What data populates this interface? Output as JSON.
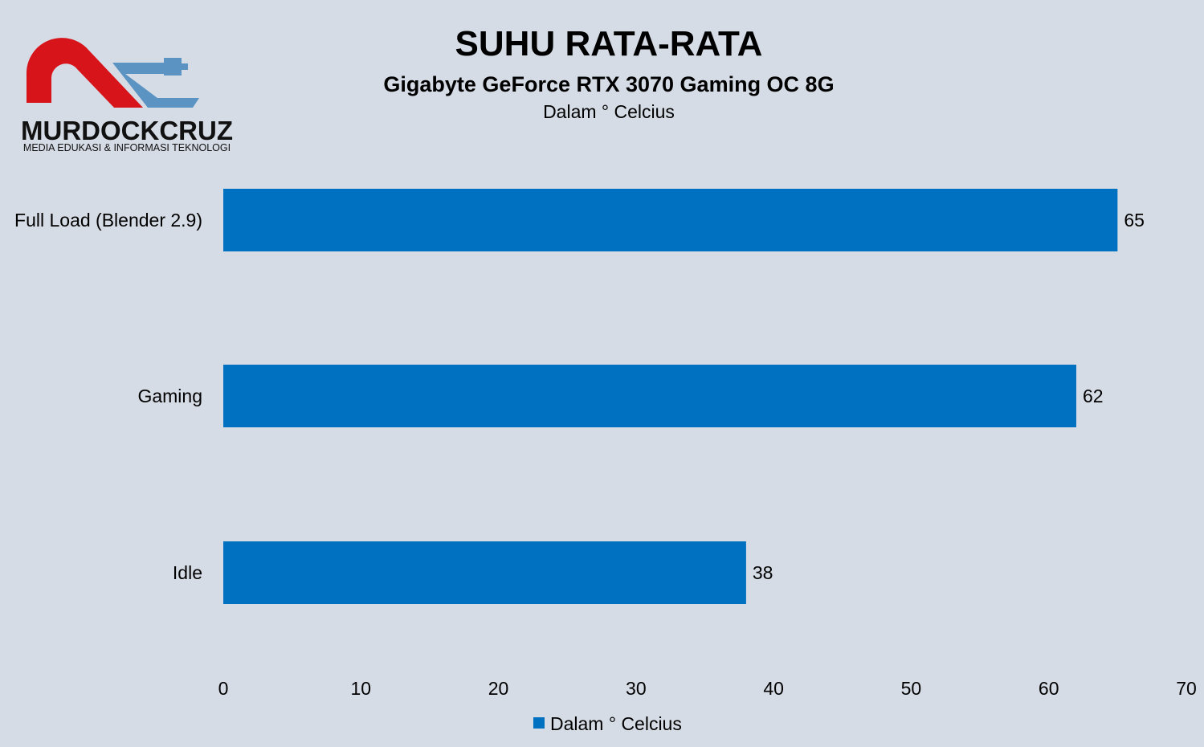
{
  "logo": {
    "name": "MURDOCKCRUZ",
    "tagline": "MEDIA EDUKASI & INFORMASI TEKNOLOGI",
    "icon": "murdockcruz-logo-icon",
    "colors": {
      "red": "#d7141a",
      "blue": "#5b93c3"
    }
  },
  "chart_data": {
    "type": "bar",
    "orientation": "horizontal",
    "title": "SUHU RATA-RATA",
    "subtitle": "Gigabyte GeForce RTX 3070 Gaming OC 8G",
    "unit_label": "Dalam ° Celcius",
    "categories": [
      "Full Load (Blender 2.9)",
      "Gaming",
      "Idle"
    ],
    "series": [
      {
        "name": "Dalam ° Celcius",
        "values": [
          65,
          62,
          38
        ],
        "color": "#0070c0"
      }
    ],
    "xlim": [
      0,
      70
    ],
    "xticks": [
      0,
      10,
      20,
      30,
      40,
      50,
      60,
      70
    ],
    "grid": false,
    "legend": "bottom-center",
    "data_labels": true,
    "background": "#d6dce5"
  }
}
